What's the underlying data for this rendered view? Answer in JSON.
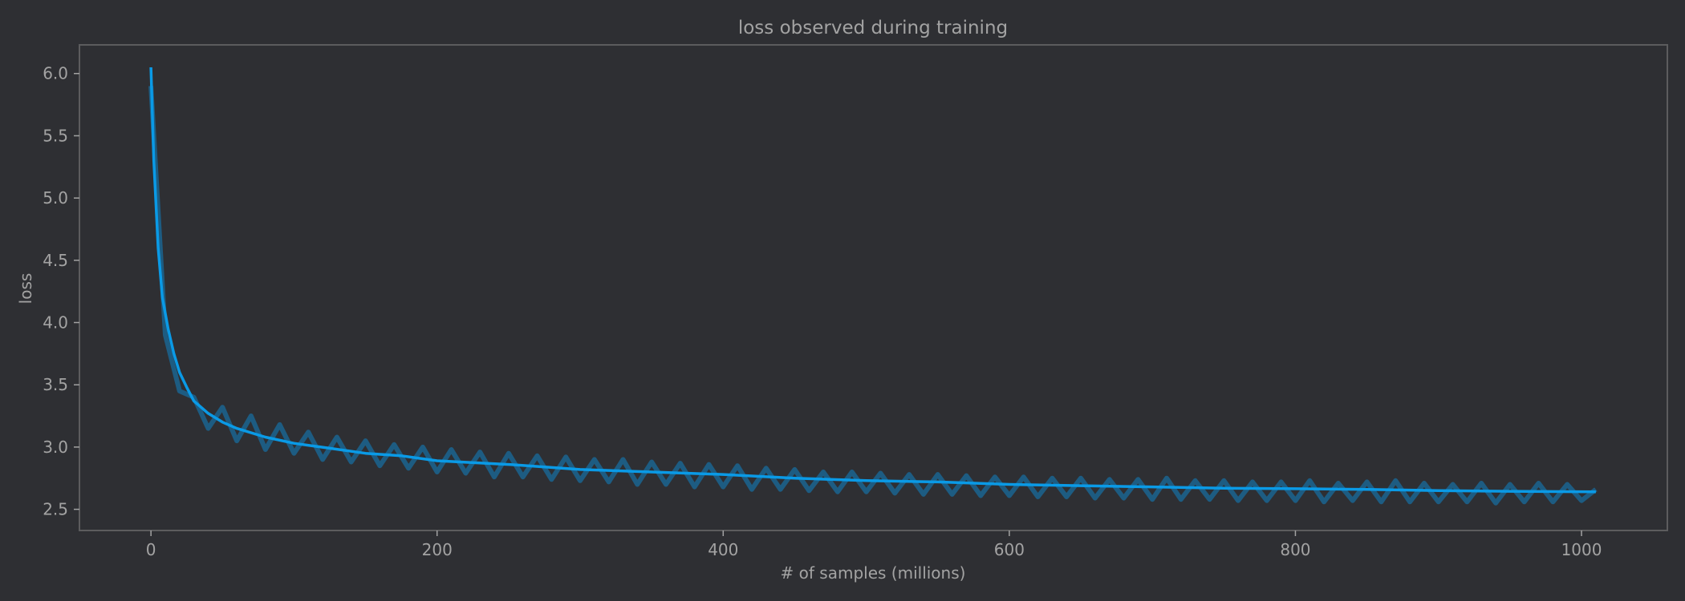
{
  "chart_data": {
    "type": "line",
    "title": "loss observed during training",
    "xlabel": "# of samples (millions)",
    "ylabel": "loss",
    "xlim": [
      -50,
      1060
    ],
    "ylim": [
      2.33,
      6.23
    ],
    "xticks": [
      0,
      200,
      400,
      600,
      800,
      1000
    ],
    "xtick_labels": [
      "0",
      "200",
      "400",
      "600",
      "800",
      "1000"
    ],
    "yticks": [
      2.5,
      3.0,
      3.5,
      4.0,
      4.5,
      5.0,
      5.5,
      6.0
    ],
    "ytick_labels": [
      "2.5",
      "3.0",
      "3.5",
      "4.0",
      "4.5",
      "5.0",
      "5.5",
      "6.0"
    ],
    "grid": false,
    "colors": {
      "background": "#2e2f33",
      "frame": "#5c5c5e",
      "text": "#a3a3a3",
      "smoothed": "#0a9ae6",
      "raw": "#1d5c82"
    },
    "series": [
      {
        "role": "raw",
        "x": [
          0,
          10,
          20,
          30,
          40,
          50,
          60,
          70,
          80,
          90,
          100,
          110,
          120,
          130,
          140,
          150,
          160,
          170,
          180,
          190,
          200,
          210,
          220,
          230,
          240,
          250,
          260,
          270,
          280,
          290,
          300,
          310,
          320,
          330,
          340,
          350,
          360,
          370,
          380,
          390,
          400,
          410,
          420,
          430,
          440,
          450,
          460,
          470,
          480,
          490,
          500,
          510,
          520,
          530,
          540,
          550,
          560,
          570,
          580,
          590,
          600,
          610,
          620,
          630,
          640,
          650,
          660,
          670,
          680,
          690,
          700,
          710,
          720,
          730,
          740,
          750,
          760,
          770,
          780,
          790,
          800,
          810,
          820,
          830,
          840,
          850,
          860,
          870,
          880,
          890,
          900,
          910,
          920,
          930,
          940,
          950,
          960,
          970,
          980,
          990,
          1000,
          1010
        ],
        "y": [
          5.9,
          3.9,
          3.45,
          3.4,
          3.15,
          3.32,
          3.05,
          3.25,
          2.98,
          3.18,
          2.95,
          3.12,
          2.9,
          3.08,
          2.88,
          3.05,
          2.85,
          3.02,
          2.83,
          3.0,
          2.8,
          2.98,
          2.79,
          2.96,
          2.76,
          2.95,
          2.76,
          2.93,
          2.74,
          2.92,
          2.73,
          2.9,
          2.72,
          2.9,
          2.7,
          2.88,
          2.7,
          2.87,
          2.68,
          2.86,
          2.68,
          2.85,
          2.66,
          2.83,
          2.66,
          2.82,
          2.65,
          2.8,
          2.64,
          2.8,
          2.64,
          2.79,
          2.63,
          2.78,
          2.62,
          2.78,
          2.62,
          2.77,
          2.61,
          2.76,
          2.61,
          2.76,
          2.6,
          2.75,
          2.6,
          2.75,
          2.59,
          2.74,
          2.59,
          2.74,
          2.58,
          2.75,
          2.58,
          2.73,
          2.58,
          2.73,
          2.57,
          2.72,
          2.57,
          2.72,
          2.57,
          2.73,
          2.56,
          2.71,
          2.57,
          2.72,
          2.56,
          2.73,
          2.56,
          2.71,
          2.56,
          2.7,
          2.56,
          2.71,
          2.55,
          2.7,
          2.56,
          2.71,
          2.56,
          2.7,
          2.57,
          2.66
        ]
      },
      {
        "role": "smoothed",
        "x": [
          0,
          2,
          5,
          8,
          12,
          16,
          20,
          25,
          30,
          40,
          50,
          60,
          80,
          100,
          125,
          150,
          175,
          200,
          250,
          300,
          350,
          400,
          450,
          500,
          550,
          600,
          650,
          700,
          750,
          800,
          850,
          900,
          950,
          1010
        ],
        "y": [
          6.05,
          5.3,
          4.6,
          4.2,
          3.95,
          3.75,
          3.6,
          3.48,
          3.37,
          3.27,
          3.2,
          3.15,
          3.08,
          3.03,
          2.99,
          2.95,
          2.93,
          2.89,
          2.86,
          2.82,
          2.8,
          2.78,
          2.75,
          2.73,
          2.72,
          2.7,
          2.69,
          2.68,
          2.67,
          2.665,
          2.66,
          2.65,
          2.645,
          2.64
        ]
      }
    ]
  }
}
